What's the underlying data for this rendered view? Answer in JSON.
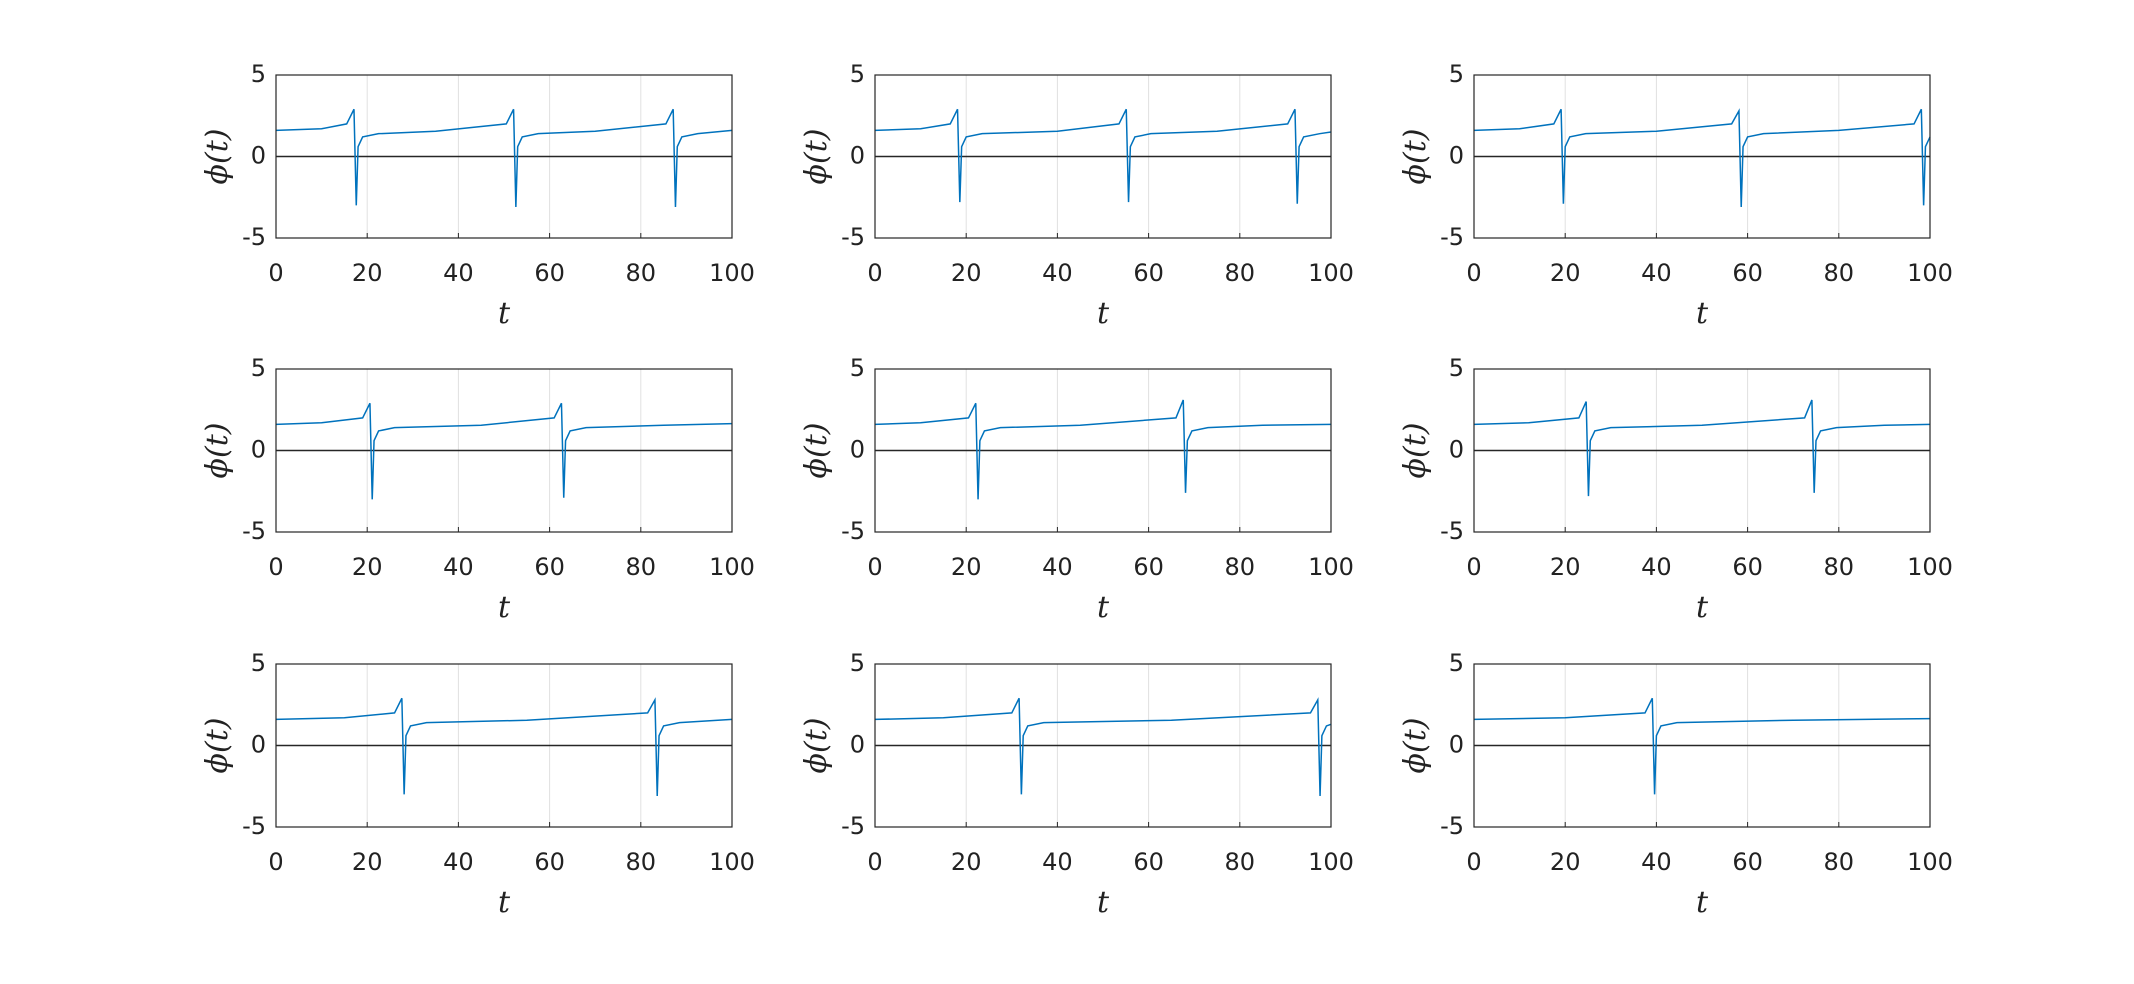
{
  "chart_data": [
    {
      "type": "line",
      "xlabel": "t",
      "ylabel": "ϕ(t)",
      "xlim": [
        0,
        100
      ],
      "ylim": [
        -5,
        5
      ],
      "xticks": [
        0,
        20,
        40,
        60,
        80,
        100
      ],
      "yticks": [
        -5,
        0,
        5
      ],
      "xgrid": true,
      "hline": 0,
      "color": "#0072bd",
      "x": [
        0,
        10,
        15.5,
        17.1,
        17.6,
        18,
        19,
        22.5,
        35,
        50.5,
        52.1,
        52.6,
        53,
        54,
        57.5,
        70,
        85.5,
        87.1,
        87.6,
        88,
        89,
        92.5,
        100
      ],
      "values": [
        1.6,
        1.7,
        2.0,
        2.9,
        -3.0,
        0.6,
        1.2,
        1.4,
        1.55,
        2.0,
        2.9,
        -3.1,
        0.6,
        1.2,
        1.4,
        1.55,
        2.0,
        2.9,
        -3.1,
        0.6,
        1.2,
        1.4,
        1.6
      ]
    },
    {
      "type": "line",
      "xlabel": "t",
      "ylabel": "ϕ(t)",
      "xlim": [
        0,
        100
      ],
      "ylim": [
        -5,
        5
      ],
      "xticks": [
        0,
        20,
        40,
        60,
        80,
        100
      ],
      "yticks": [
        -5,
        0,
        5
      ],
      "xgrid": true,
      "hline": 0,
      "color": "#0072bd",
      "x": [
        0,
        10,
        16.5,
        18.1,
        18.6,
        19,
        20,
        23.5,
        40,
        53.5,
        55.1,
        55.6,
        56,
        57,
        60.5,
        75,
        90.5,
        92.1,
        92.6,
        93,
        94,
        97.5,
        100
      ],
      "values": [
        1.6,
        1.7,
        2.0,
        2.9,
        -2.8,
        0.6,
        1.2,
        1.4,
        1.55,
        2.0,
        2.9,
        -2.8,
        0.6,
        1.2,
        1.4,
        1.55,
        2.0,
        2.9,
        -2.9,
        0.6,
        1.2,
        1.4,
        1.5
      ]
    },
    {
      "type": "line",
      "xlabel": "t",
      "ylabel": "ϕ(t)",
      "xlim": [
        0,
        100
      ],
      "ylim": [
        -5,
        5
      ],
      "xticks": [
        0,
        20,
        40,
        60,
        80,
        100
      ],
      "yticks": [
        -5,
        0,
        5
      ],
      "xgrid": true,
      "hline": 0,
      "color": "#0072bd",
      "x": [
        0,
        10,
        17.5,
        19.1,
        19.6,
        20,
        21,
        24.5,
        40,
        56.5,
        58.1,
        58.6,
        59,
        60,
        63.5,
        80,
        96.5,
        98.1,
        98.6,
        99,
        100
      ],
      "values": [
        1.6,
        1.7,
        2.0,
        2.9,
        -2.9,
        0.6,
        1.2,
        1.4,
        1.55,
        2.0,
        2.8,
        -3.1,
        0.6,
        1.2,
        1.4,
        1.6,
        2.0,
        2.9,
        -3.0,
        0.6,
        1.2
      ]
    },
    {
      "type": "line",
      "xlabel": "t",
      "ylabel": "ϕ(t)",
      "xlim": [
        0,
        100
      ],
      "ylim": [
        -5,
        5
      ],
      "xticks": [
        0,
        20,
        40,
        60,
        80,
        100
      ],
      "yticks": [
        -5,
        0,
        5
      ],
      "xgrid": true,
      "hline": 0,
      "color": "#0072bd",
      "x": [
        0,
        10,
        19,
        20.6,
        21.1,
        21.5,
        22.5,
        26,
        45,
        61,
        62.6,
        63.1,
        63.5,
        64.5,
        68,
        85,
        100
      ],
      "values": [
        1.6,
        1.7,
        2.0,
        2.9,
        -3.0,
        0.6,
        1.2,
        1.4,
        1.55,
        2.0,
        2.9,
        -2.9,
        0.6,
        1.2,
        1.4,
        1.55,
        1.65
      ]
    },
    {
      "type": "line",
      "xlabel": "t",
      "ylabel": "ϕ(t)",
      "xlim": [
        0,
        100
      ],
      "ylim": [
        -5,
        5
      ],
      "xticks": [
        0,
        20,
        40,
        60,
        80,
        100
      ],
      "yticks": [
        -5,
        0,
        5
      ],
      "xgrid": true,
      "hline": 0,
      "color": "#0072bd",
      "x": [
        0,
        10,
        20.5,
        22.1,
        22.6,
        23,
        24,
        27.5,
        45,
        66,
        67.6,
        68.1,
        68.5,
        69.5,
        73,
        85,
        100
      ],
      "values": [
        1.6,
        1.7,
        2.0,
        2.9,
        -3.0,
        0.6,
        1.2,
        1.4,
        1.55,
        2.0,
        3.1,
        -2.6,
        0.6,
        1.2,
        1.4,
        1.55,
        1.6
      ]
    },
    {
      "type": "line",
      "xlabel": "t",
      "ylabel": "ϕ(t)",
      "xlim": [
        0,
        100
      ],
      "ylim": [
        -5,
        5
      ],
      "xticks": [
        0,
        20,
        40,
        60,
        80,
        100
      ],
      "yticks": [
        -5,
        0,
        5
      ],
      "xgrid": true,
      "hline": 0,
      "color": "#0072bd",
      "x": [
        0,
        12,
        23,
        24.6,
        25.1,
        25.5,
        26.5,
        30,
        50,
        72.5,
        74.1,
        74.6,
        75,
        76,
        79.5,
        90,
        100
      ],
      "values": [
        1.6,
        1.7,
        2.0,
        3.0,
        -2.8,
        0.6,
        1.2,
        1.4,
        1.55,
        2.0,
        3.1,
        -2.6,
        0.6,
        1.2,
        1.4,
        1.55,
        1.6
      ]
    },
    {
      "type": "line",
      "xlabel": "t",
      "ylabel": "ϕ(t)",
      "xlim": [
        0,
        100
      ],
      "ylim": [
        -5,
        5
      ],
      "xticks": [
        0,
        20,
        40,
        60,
        80,
        100
      ],
      "yticks": [
        -5,
        0,
        5
      ],
      "xgrid": true,
      "hline": 0,
      "color": "#0072bd",
      "x": [
        0,
        15,
        26,
        27.6,
        28.1,
        28.5,
        29.5,
        33,
        55,
        81.5,
        83.1,
        83.6,
        84,
        85,
        88.5,
        100
      ],
      "values": [
        1.6,
        1.7,
        2.0,
        2.9,
        -3.0,
        0.6,
        1.2,
        1.4,
        1.55,
        2.0,
        2.8,
        -3.1,
        0.6,
        1.2,
        1.4,
        1.6
      ]
    },
    {
      "type": "line",
      "xlabel": "t",
      "ylabel": "ϕ(t)",
      "xlim": [
        0,
        100
      ],
      "ylim": [
        -5,
        5
      ],
      "xticks": [
        0,
        20,
        40,
        60,
        80,
        100
      ],
      "yticks": [
        -5,
        0,
        5
      ],
      "xgrid": true,
      "hline": 0,
      "color": "#0072bd",
      "x": [
        0,
        15,
        30,
        31.6,
        32.1,
        32.5,
        33.5,
        37,
        65,
        95.5,
        97.1,
        97.6,
        98,
        99,
        100
      ],
      "values": [
        1.6,
        1.7,
        2.0,
        2.9,
        -3.0,
        0.6,
        1.2,
        1.4,
        1.55,
        2.0,
        2.8,
        -3.1,
        0.6,
        1.2,
        1.3
      ]
    },
    {
      "type": "line",
      "xlabel": "t",
      "ylabel": "ϕ(t)",
      "xlim": [
        0,
        100
      ],
      "ylim": [
        -5,
        5
      ],
      "xticks": [
        0,
        20,
        40,
        60,
        80,
        100
      ],
      "yticks": [
        -5,
        0,
        5
      ],
      "xgrid": true,
      "hline": 0,
      "color": "#0072bd",
      "x": [
        0,
        20,
        37.5,
        39.1,
        39.6,
        40,
        41,
        44.5,
        70,
        100
      ],
      "values": [
        1.6,
        1.7,
        2.0,
        2.9,
        -3.0,
        0.6,
        1.2,
        1.4,
        1.55,
        1.65
      ]
    }
  ]
}
